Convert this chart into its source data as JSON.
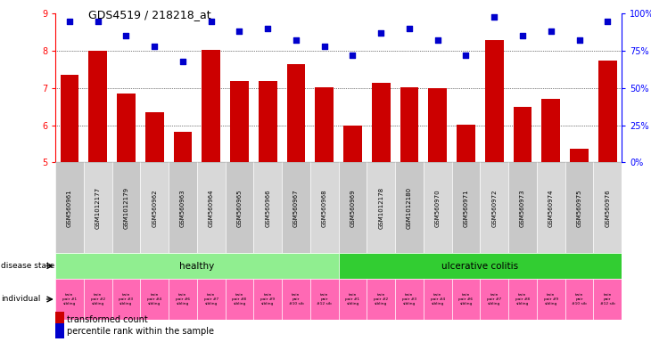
{
  "title": "GDS4519 / 218218_at",
  "samples": [
    "GSM560961",
    "GSM1012177",
    "GSM1012179",
    "GSM560962",
    "GSM560963",
    "GSM560964",
    "GSM560965",
    "GSM560966",
    "GSM560967",
    "GSM560968",
    "GSM560969",
    "GSM1012178",
    "GSM1012180",
    "GSM560970",
    "GSM560971",
    "GSM560972",
    "GSM560973",
    "GSM560974",
    "GSM560975",
    "GSM560976"
  ],
  "bar_values": [
    7.35,
    8.0,
    6.85,
    6.35,
    5.82,
    8.02,
    7.2,
    7.2,
    7.65,
    7.02,
    5.98,
    7.15,
    7.02,
    7.0,
    6.02,
    8.3,
    6.5,
    6.7,
    5.38,
    7.75
  ],
  "dot_pct": [
    95,
    95,
    85,
    78,
    68,
    95,
    88,
    90,
    82,
    78,
    72,
    87,
    90,
    82,
    72,
    98,
    85,
    88,
    82,
    95
  ],
  "bar_color": "#CC0000",
  "dot_color": "#0000CC",
  "ylim_left": [
    5,
    9
  ],
  "ylim_right": [
    0,
    100
  ],
  "yticks_left": [
    5,
    6,
    7,
    8,
    9
  ],
  "yticks_right": [
    0,
    25,
    50,
    75,
    100
  ],
  "ytick_labels_right": [
    "0%",
    "25%",
    "50%",
    "75%",
    "100%"
  ],
  "grid_values": [
    6.0,
    7.0,
    8.0
  ],
  "healthy_color": "#90EE90",
  "uc_color": "#32CD32",
  "individual_bg": "#FF69B4",
  "sample_bg_even": "#C8C8C8",
  "sample_bg_odd": "#D8D8D8",
  "individuals": [
    "twin\npair #1\nsibling",
    "twin\npair #2\nsibling",
    "twin\npair #3\nsibling",
    "twin\npair #4\nsibling",
    "twin\npair #6\nsibling",
    "twin\npair #7\nsibling",
    "twin\npair #8\nsibling",
    "twin\npair #9\nsibling",
    "twin\npair\n#10 sib",
    "twin\npair\n#12 sib",
    "twin\npair #1\nsibling",
    "twin\npair #2\nsibling",
    "twin\npair #3\nsibling",
    "twin\npair #4\nsibling",
    "twin\npair #6\nsibling",
    "twin\npair #7\nsibling",
    "twin\npair #8\nsibling",
    "twin\npair #9\nsibling",
    "twin\npair\n#10 sib",
    "twin\npair\n#12 sib"
  ],
  "fig_w": 7.3,
  "fig_h": 3.84,
  "dpi": 100
}
